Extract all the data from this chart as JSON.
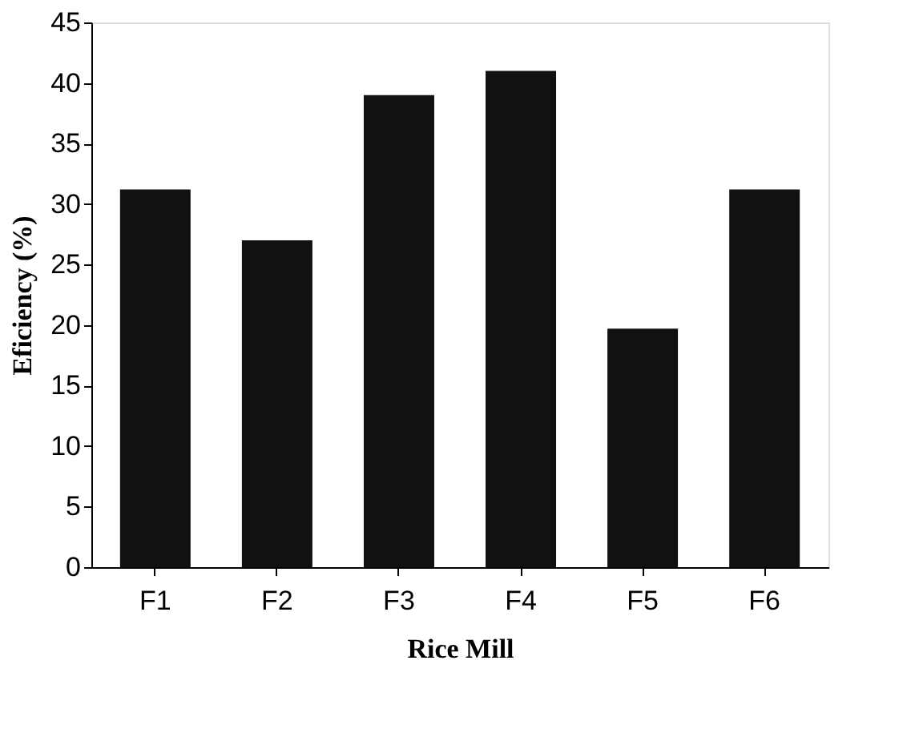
{
  "chart_data": {
    "type": "bar",
    "xlabel": "Rice Mill",
    "ylabel": "Eficiency (%)",
    "categories": [
      "F1",
      "F2",
      "F3",
      "F4",
      "F5",
      "F6"
    ],
    "values": [
      31.2,
      27,
      39,
      41,
      19.7,
      31.2
    ],
    "color": "#111111",
    "ylim": [
      0,
      45
    ],
    "yticks": [
      0,
      5,
      10,
      15,
      20,
      25,
      30,
      35,
      40,
      45
    ],
    "grid": false
  }
}
